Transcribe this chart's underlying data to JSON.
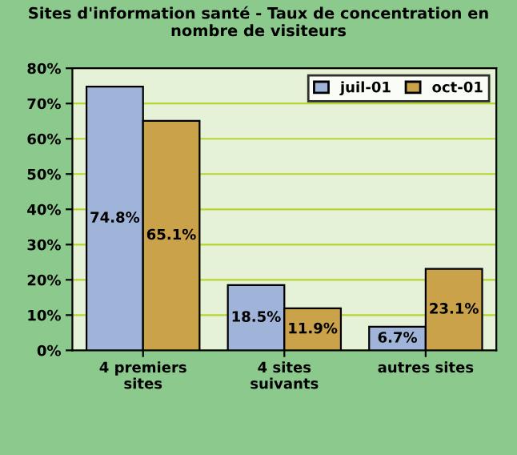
{
  "chart_data": {
    "type": "bar",
    "title": "Sites d'information santé - Taux de concentration en nombre de visiteurs",
    "categories": [
      "4 premiers sites",
      "4 sites suivants",
      "autres sites"
    ],
    "series": [
      {
        "name": "juil-01",
        "color": "#9fb4d8",
        "values": [
          74.8,
          18.5,
          6.7
        ],
        "value_labels": [
          "74.8%",
          "18.5%",
          "6.7%"
        ]
      },
      {
        "name": "oct-01",
        "color": "#c9a24a",
        "values": [
          65.1,
          11.9,
          23.1
        ],
        "value_labels": [
          "65.1%",
          "11.9%",
          "23.1%"
        ]
      }
    ],
    "ylim": [
      0,
      80
    ],
    "yticks": [
      {
        "value": 0,
        "label": "0%"
      },
      {
        "value": 10,
        "label": "10%"
      },
      {
        "value": 20,
        "label": "20%"
      },
      {
        "value": 30,
        "label": "30%"
      },
      {
        "value": 40,
        "label": "40%"
      },
      {
        "value": 50,
        "label": "50%"
      },
      {
        "value": 60,
        "label": "60%"
      },
      {
        "value": 70,
        "label": "70%"
      },
      {
        "value": 80,
        "label": "80%"
      }
    ],
    "grid": "y",
    "legend": "top right"
  }
}
